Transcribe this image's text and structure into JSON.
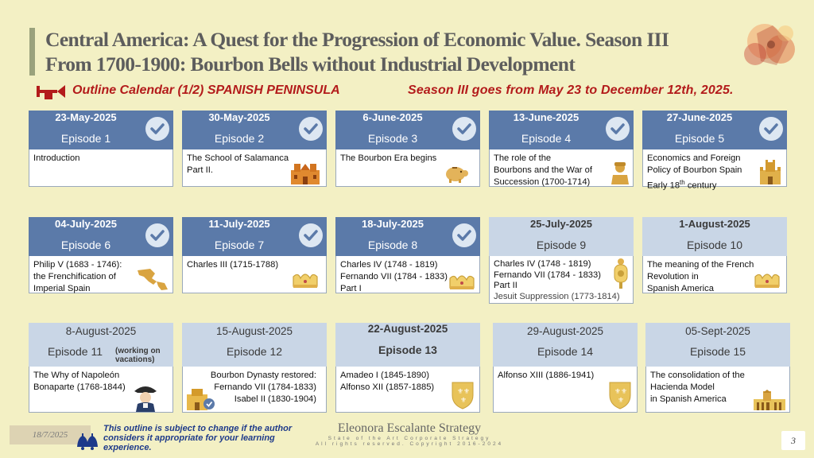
{
  "header": {
    "title_line1": "Central America:  A Quest for the Progression of  Economic Value. Season III",
    "title_line2": "From 1700-1900: Bourbon Bells without Industrial Development",
    "outline_title": "Outline Calendar (1/2) SPANISH PENINSULA",
    "season_range": "Season III goes from May 23 to December 12th, 2025."
  },
  "episodes": [
    {
      "date": "23-May-2025",
      "episode": "Episode 1",
      "completed": true,
      "lines": [
        "Introduction"
      ],
      "icon": null
    },
    {
      "date": "30-May-2025",
      "episode": "Episode 2",
      "completed": true,
      "lines": [
        "The School of Salamanca",
        "Part II."
      ],
      "icon": "cathedral-icon"
    },
    {
      "date": "6-June-2025",
      "episode": "Episode 3",
      "completed": true,
      "lines": [
        "The Bourbon Era begins"
      ],
      "icon": "piggy-bank-icon"
    },
    {
      "date": "13-June-2025",
      "episode": "Episode 4",
      "completed": true,
      "lines": [
        "The role of the",
        "Bourbons and the War of",
        "Succession (1700-1714)"
      ],
      "icon": "soldier-icon"
    },
    {
      "date": "27-June-2025",
      "episode": "Episode 5",
      "completed": true,
      "lines": [
        "Economics and Foreign",
        "Policy of Bourbon Spain",
        "Early 18th century"
      ],
      "icon": "castle-icon"
    },
    {
      "date": "04-July-2025",
      "episode": "Episode 6",
      "completed": true,
      "lines": [
        "Philip V (1683 - 1746):",
        "the Frenchification of",
        "Imperial Spain"
      ],
      "icon": "americas-map-icon"
    },
    {
      "date": "11-July-2025",
      "episode": "Episode 7",
      "completed": true,
      "lines": [
        "Charles III (1715-1788)"
      ],
      "icon": "crown-icon"
    },
    {
      "date": "18-July-2025",
      "episode": "Episode 8",
      "completed": true,
      "lines": [
        "Charles IV (1748 - 1819)",
        "Fernando VII (1784 - 1833)",
        "Part I"
      ],
      "icon": "crown-icon"
    },
    {
      "date": "25-July-2025",
      "episode": "Episode 9",
      "completed": false,
      "lines": [
        "Charles IV (1748 - 1819)",
        "Fernando VII (1784 - 1833)",
        "Part II",
        "Jesuit Suppression (1773-1814)"
      ],
      "icon": "royal-emblem-icon"
    },
    {
      "date": "1-August-2025",
      "episode": "Episode 10",
      "completed": false,
      "lines": [
        "The meaning of the French",
        "Revolution in",
        "Spanish America"
      ],
      "icon": "crown-icon"
    },
    {
      "date": "8-August-2025",
      "episode": "Episode 11",
      "episode_note": "(working on vacations)",
      "completed": false,
      "lines": [
        "The Why of Napoleón",
        "Bonaparte (1768-1844)"
      ],
      "icon": "napoleon-icon"
    },
    {
      "date": "15-August-2025",
      "episode": "Episode 12",
      "completed": false,
      "lines": [
        "Bourbon Dynasty restored:",
        "Fernando VII (1784-1833)",
        "Isabel II (1830-1904)"
      ],
      "icon": "palace-icon"
    },
    {
      "date": "22-August-2025",
      "episode": "Episode 13",
      "completed": false,
      "lines": [
        "Amadeo I (1845-1890)",
        "Alfonso XII (1857-1885)"
      ],
      "icon": "fleur-de-lis-shield-icon"
    },
    {
      "date": "29-August-2025",
      "episode": "Episode 14",
      "completed": false,
      "lines": [
        "Alfonso XIII (1886-1941)"
      ],
      "icon": "fleur-de-lis-shield-icon"
    },
    {
      "date": "05-Sept-2025",
      "episode": "Episode 15",
      "completed": false,
      "lines": [
        "The consolidation of the",
        "Hacienda Model",
        "in Spanish America"
      ],
      "icon": "hacienda-icon"
    }
  ],
  "footer": {
    "date": "18/7/2025",
    "disclaimer_lines": [
      "This outline is subject to change if the author",
      "considers it appropriate for your learning",
      "experience."
    ],
    "brand_name": "Eleonora Escalante Strategy",
    "brand_tagline": "State of the Art Corporate Strategy",
    "copyright": "All rights reserved. Copyright 2016-2024",
    "page_number": "3"
  },
  "colors": {
    "background": "#f3f0c4",
    "completed_header": "#5b7aa9",
    "pending_header": "#c9d6e6",
    "accent_red": "#b31b1b",
    "disclaimer_blue": "#1e3a8a"
  }
}
